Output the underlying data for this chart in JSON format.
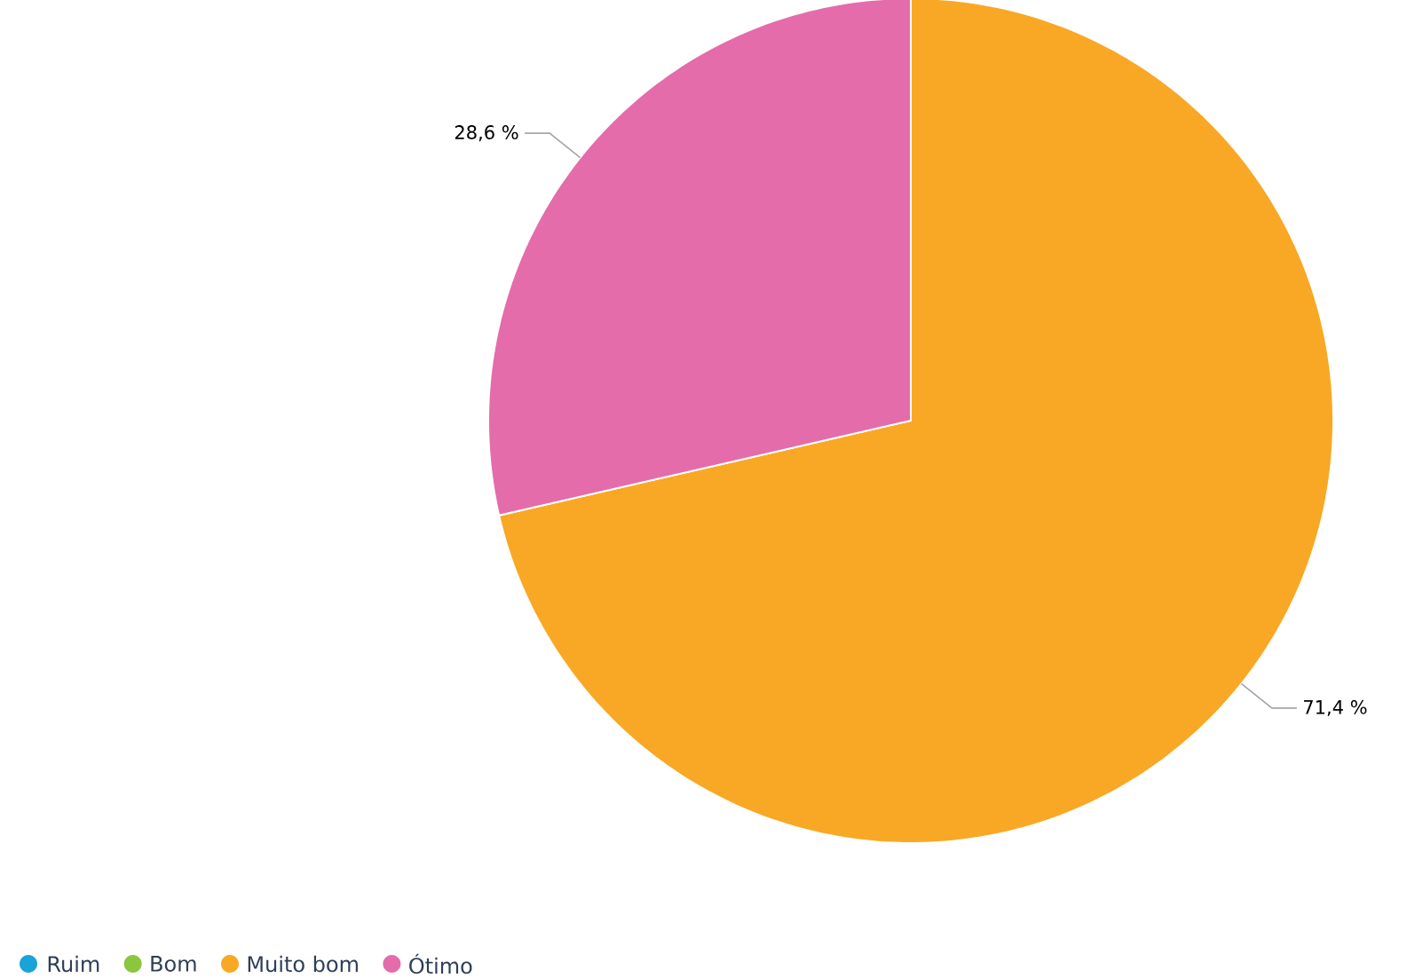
{
  "chart_data": {
    "type": "pie",
    "categories": [
      "Ruim",
      "Bom",
      "Muito bom",
      "Ótimo"
    ],
    "values": [
      0,
      0,
      71.4,
      28.6
    ],
    "colors": [
      "#1aa3d9",
      "#8cc63f",
      "#f9a825",
      "#e46caa"
    ],
    "value_labels": [
      null,
      null,
      "71,4 %",
      "28,6 %"
    ],
    "legend": "bottom left"
  }
}
